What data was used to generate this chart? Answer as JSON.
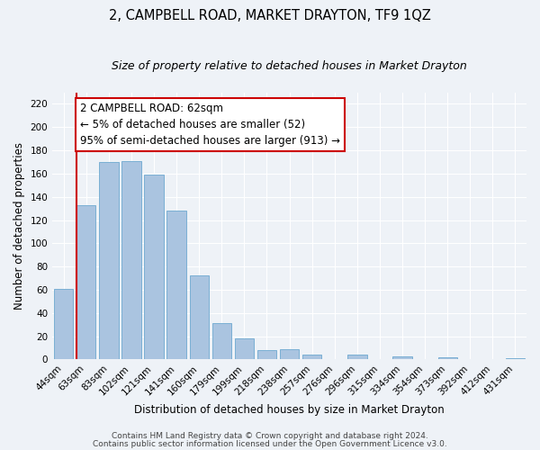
{
  "title": "2, CAMPBELL ROAD, MARKET DRAYTON, TF9 1QZ",
  "subtitle": "Size of property relative to detached houses in Market Drayton",
  "xlabel": "Distribution of detached houses by size in Market Drayton",
  "ylabel": "Number of detached properties",
  "bar_labels": [
    "44sqm",
    "63sqm",
    "83sqm",
    "102sqm",
    "121sqm",
    "141sqm",
    "160sqm",
    "179sqm",
    "199sqm",
    "218sqm",
    "238sqm",
    "257sqm",
    "276sqm",
    "296sqm",
    "315sqm",
    "334sqm",
    "354sqm",
    "373sqm",
    "392sqm",
    "412sqm",
    "431sqm"
  ],
  "bar_values": [
    61,
    133,
    170,
    171,
    159,
    128,
    72,
    31,
    18,
    8,
    9,
    4,
    0,
    4,
    0,
    3,
    0,
    2,
    0,
    0,
    1
  ],
  "bar_color": "#aac4e0",
  "bar_edge_color": "#7aafd4",
  "highlight_bar_index": 1,
  "highlight_color": "#cc0000",
  "ylim": [
    0,
    230
  ],
  "yticks": [
    0,
    20,
    40,
    60,
    80,
    100,
    120,
    140,
    160,
    180,
    200,
    220
  ],
  "annotation_title": "2 CAMPBELL ROAD: 62sqm",
  "annotation_line1": "← 5% of detached houses are smaller (52)",
  "annotation_line2": "95% of semi-detached houses are larger (913) →",
  "footer_line1": "Contains HM Land Registry data © Crown copyright and database right 2024.",
  "footer_line2": "Contains public sector information licensed under the Open Government Licence v3.0.",
  "background_color": "#eef2f7",
  "grid_color": "#ffffff",
  "title_fontsize": 10.5,
  "subtitle_fontsize": 9,
  "xlabel_fontsize": 8.5,
  "ylabel_fontsize": 8.5,
  "tick_fontsize": 7.5,
  "annotation_fontsize": 8.5,
  "footer_fontsize": 6.5
}
